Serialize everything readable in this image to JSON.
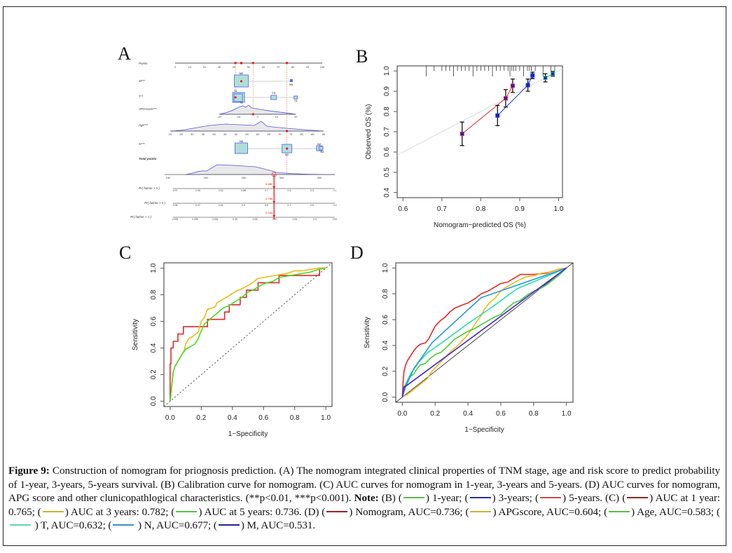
{
  "panels": {
    "A": {
      "letter": "A"
    },
    "B": {
      "letter": "B"
    },
    "C": {
      "letter": "C"
    },
    "D": {
      "letter": "D"
    }
  },
  "chart_data": [
    {
      "id": "A",
      "type": "nomogram",
      "rows": [
        {
          "label": "Points",
          "ticks": [
            "0",
            "10",
            "20",
            "30",
            "40",
            "50",
            "60",
            "70",
            "80",
            "90",
            "100"
          ]
        },
        {
          "label": "M***",
          "levels": [
            {
              "name": "M0",
              "points": 45
            },
            {
              "name": "M1",
              "points": 79
            }
          ]
        },
        {
          "label": "T**",
          "levels": [
            {
              "name": "T2",
              "points": 41
            },
            {
              "name": "T3",
              "points": 67
            },
            {
              "name": "T1",
              "points": 45
            },
            {
              "name": "T4",
              "points": 82
            }
          ]
        },
        {
          "label": "APGscore***",
          "ticks": [
            "-20",
            "-10",
            "0",
            "10",
            "20"
          ]
        },
        {
          "label": "Age***",
          "ticks": [
            "20",
            "25",
            "30",
            "35",
            "40",
            "45",
            "50",
            "55",
            "60",
            "65",
            "70",
            "75",
            "80",
            "85",
            "90"
          ]
        },
        {
          "label": "N***",
          "levels": [
            {
              "name": "N0",
              "points": 45
            },
            {
              "name": "N1",
              "points": 76
            },
            {
              "name": "N2",
              "points": 98
            },
            {
              "name": "N3",
              "points": 99
            }
          ]
        },
        {
          "label": "Total points",
          "ticks": [
            "150",
            "200",
            "250",
            "300",
            "350"
          ]
        },
        {
          "label": "Pr( futime > 5 )",
          "ticks": [
            "0.97",
            "0.95",
            "0.92",
            "0.88",
            "0.7",
            "0.5",
            "0.3",
            "0.1"
          ],
          "value": "0.682"
        },
        {
          "label": "Pr( futime > 3 )",
          "ticks": [
            "0.98",
            "0.97",
            "0.94",
            "0.9",
            "0.8",
            "0.7",
            "0.5",
            "0.3"
          ],
          "value": "0.789"
        },
        {
          "label": "Pr( futime > 1 )",
          "ticks": [
            "0.998",
            "0.996",
            "0.994",
            "0.99",
            "0.98",
            "0.97",
            "0.94",
            "0.9",
            "0.82"
          ],
          "value": "0.943"
        }
      ],
      "selected_total_points": 290
    },
    {
      "id": "B",
      "type": "scatter",
      "xlabel": "Nomogram−predicted OS (%)",
      "ylabel": "Observed OS (%)",
      "xlim": [
        0.585,
        1.01
      ],
      "ylim": [
        0.375,
        1.025
      ],
      "xticks": [
        0.6,
        0.7,
        0.8,
        0.9,
        1.0
      ],
      "yticks": [
        0.4,
        0.5,
        0.6,
        0.7,
        0.8,
        0.9,
        1.0
      ],
      "xtick_labels": [
        "0.6",
        "0.7",
        "0.8",
        "0.9",
        "1.0"
      ],
      "ytick_labels": [
        "0.4",
        "0.5",
        "0.6",
        "0.7",
        "0.8",
        "0.9",
        "1.0"
      ],
      "series": [
        {
          "name": "5-years",
          "color": "#e8262a",
          "x": [
            0.752,
            0.864,
            0.882
          ],
          "y": [
            0.69,
            0.865,
            0.927
          ],
          "err": [
            0.058,
            0.043,
            0.033
          ]
        },
        {
          "name": "3-years",
          "color": "#2233dd",
          "x": [
            0.843,
            0.921,
            0.933
          ],
          "y": [
            0.78,
            0.93,
            0.978
          ],
          "err": [
            0.05,
            0.03,
            0.016
          ]
        },
        {
          "name": "1-year",
          "color": "#33cc55",
          "x": [
            0.966,
            0.985
          ],
          "y": [
            0.966,
            0.986
          ],
          "err": [
            0.02,
            0.012
          ]
        }
      ],
      "rug": [
        0.66,
        0.68,
        0.7,
        0.71,
        0.72,
        0.73,
        0.74,
        0.75,
        0.76,
        0.77,
        0.78,
        0.79,
        0.8,
        0.81,
        0.82,
        0.83,
        0.84,
        0.85,
        0.86,
        0.87,
        0.875,
        0.88,
        0.885,
        0.89,
        0.9,
        0.91,
        0.92,
        0.925,
        0.93,
        0.94,
        0.96,
        0.98,
        0.99
      ],
      "reference_line": "diagonal"
    },
    {
      "id": "C",
      "type": "line",
      "xlabel": "1−Specificity",
      "ylabel": "Sensitivity",
      "xlim": [
        -0.04,
        1.04
      ],
      "ylim": [
        -0.04,
        1.04
      ],
      "xticks": [
        0,
        0.2,
        0.4,
        0.6,
        0.8,
        1.0
      ],
      "yticks": [
        0,
        0.2,
        0.4,
        0.6,
        0.8,
        1.0
      ],
      "xtick_labels": [
        "0.0",
        "0.2",
        "0.4",
        "0.6",
        "0.8",
        "1.0"
      ],
      "ytick_labels": [
        "0.0",
        "0.2",
        "0.4",
        "0.6",
        "0.8",
        "1.0"
      ],
      "series": [
        {
          "name": "AUC at 1 year: 0.765",
          "color": "#e8262a",
          "step": true,
          "x": [
            0,
            0,
            0.005,
            0.005,
            0.02,
            0.02,
            0.05,
            0.05,
            0.085,
            0.085,
            0.24,
            0.24,
            0.35,
            0.35,
            0.38,
            0.38,
            0.45,
            0.45,
            0.49,
            0.49,
            0.565,
            0.565,
            0.7,
            0.7,
            0.96,
            0.96,
            1.0
          ],
          "y": [
            0,
            0.28,
            0.28,
            0.4,
            0.4,
            0.45,
            0.45,
            0.505,
            0.505,
            0.56,
            0.56,
            0.615,
            0.615,
            0.67,
            0.67,
            0.725,
            0.725,
            0.78,
            0.78,
            0.835,
            0.835,
            0.89,
            0.89,
            0.945,
            0.945,
            1.0,
            1.0
          ]
        },
        {
          "name": "AUC at 3 years: 0.782",
          "color": "#eebb11",
          "x": [
            0,
            0.01,
            0.02,
            0.03,
            0.05,
            0.07,
            0.09,
            0.1,
            0.12,
            0.15,
            0.18,
            0.2,
            0.22,
            0.24,
            0.27,
            0.29,
            0.3,
            0.33,
            0.36,
            0.4,
            0.43,
            0.47,
            0.5,
            0.53,
            0.56,
            0.6,
            0.65,
            0.7,
            0.75,
            0.8,
            0.85,
            0.9,
            0.95,
            1.0
          ],
          "y": [
            0,
            0.1,
            0.22,
            0.26,
            0.3,
            0.34,
            0.38,
            0.43,
            0.47,
            0.49,
            0.52,
            0.6,
            0.63,
            0.69,
            0.7,
            0.71,
            0.74,
            0.76,
            0.78,
            0.81,
            0.83,
            0.85,
            0.87,
            0.89,
            0.92,
            0.93,
            0.94,
            0.95,
            0.96,
            0.98,
            0.98,
            0.99,
            1.0,
            1.0
          ]
        },
        {
          "name": "AUC at 5 years: 0.736",
          "color": "#44dd22",
          "x": [
            0,
            0.01,
            0.02,
            0.03,
            0.05,
            0.07,
            0.08,
            0.1,
            0.13,
            0.16,
            0.18,
            0.2,
            0.22,
            0.25,
            0.28,
            0.31,
            0.34,
            0.38,
            0.42,
            0.46,
            0.5,
            0.54,
            0.58,
            0.62,
            0.66,
            0.7,
            0.75,
            0.8,
            0.85,
            0.9,
            0.95,
            1.0
          ],
          "y": [
            0,
            0.12,
            0.22,
            0.26,
            0.3,
            0.34,
            0.36,
            0.39,
            0.41,
            0.43,
            0.47,
            0.53,
            0.58,
            0.61,
            0.64,
            0.67,
            0.7,
            0.72,
            0.75,
            0.78,
            0.82,
            0.84,
            0.87,
            0.89,
            0.9,
            0.93,
            0.94,
            0.95,
            0.96,
            0.97,
            0.99,
            1.0
          ]
        }
      ],
      "reference_line": "diagonal-dotted"
    },
    {
      "id": "D",
      "type": "line",
      "xlabel": "1−Specificity",
      "ylabel": "Sensitivity",
      "xlim": [
        -0.04,
        1.04
      ],
      "ylim": [
        -0.04,
        1.04
      ],
      "xticks": [
        0,
        0.2,
        0.4,
        0.6,
        0.8,
        1.0
      ],
      "yticks": [
        0,
        0.2,
        0.4,
        0.6,
        0.8,
        1.0
      ],
      "xtick_labels": [
        "0.0",
        "0.2",
        "0.4",
        "0.6",
        "0.8",
        "1.0"
      ],
      "ytick_labels": [
        "0.0",
        "0.2",
        "0.4",
        "0.6",
        "0.8",
        "1.0"
      ],
      "series": [
        {
          "name": "Nomogram, AUC=0.736",
          "color": "#e8262a",
          "x": [
            0,
            0.005,
            0.01,
            0.02,
            0.03,
            0.05,
            0.07,
            0.09,
            0.11,
            0.14,
            0.16,
            0.18,
            0.2,
            0.23,
            0.26,
            0.29,
            0.32,
            0.36,
            0.4,
            0.44,
            0.48,
            0.52,
            0.56,
            0.6,
            0.64,
            0.68,
            0.72,
            0.8,
            0.88,
            0.95,
            1.0
          ],
          "y": [
            0,
            0.12,
            0.2,
            0.25,
            0.28,
            0.32,
            0.36,
            0.39,
            0.41,
            0.42,
            0.45,
            0.5,
            0.55,
            0.59,
            0.62,
            0.66,
            0.69,
            0.71,
            0.73,
            0.76,
            0.8,
            0.82,
            0.85,
            0.88,
            0.89,
            0.92,
            0.95,
            0.95,
            0.96,
            0.99,
            1.0
          ]
        },
        {
          "name": "APGscore, AUC=0.604",
          "color": "#eebb11",
          "x": [
            0,
            0.03,
            0.06,
            0.09,
            0.12,
            0.15,
            0.18,
            0.21,
            0.24,
            0.27,
            0.3,
            0.33,
            0.36,
            0.39,
            0.42,
            0.45,
            0.48,
            0.5,
            0.53,
            0.56,
            0.6,
            0.63,
            0.66,
            0.7,
            0.75,
            0.8,
            0.85,
            0.9,
            0.95,
            1.0
          ],
          "y": [
            0,
            0.02,
            0.05,
            0.08,
            0.11,
            0.14,
            0.2,
            0.24,
            0.28,
            0.32,
            0.36,
            0.39,
            0.43,
            0.47,
            0.52,
            0.58,
            0.63,
            0.68,
            0.73,
            0.76,
            0.82,
            0.85,
            0.87,
            0.9,
            0.93,
            0.94,
            0.96,
            0.97,
            0.99,
            1.0
          ]
        },
        {
          "name": "Age, AUC=0.583",
          "color": "#44cc33",
          "x": [
            0,
            0.01,
            0.03,
            0.05,
            0.07,
            0.09,
            0.11,
            0.14,
            0.17,
            0.2,
            0.24,
            0.28,
            0.32,
            0.36,
            0.4,
            0.44,
            0.48,
            0.52,
            0.56,
            0.6,
            0.64,
            0.68,
            0.72,
            0.76,
            0.8,
            0.84,
            0.88,
            0.92,
            0.96,
            1.0
          ],
          "y": [
            0,
            0.08,
            0.12,
            0.16,
            0.18,
            0.22,
            0.25,
            0.26,
            0.3,
            0.33,
            0.35,
            0.4,
            0.45,
            0.48,
            0.51,
            0.53,
            0.56,
            0.59,
            0.62,
            0.64,
            0.69,
            0.73,
            0.75,
            0.79,
            0.82,
            0.84,
            0.87,
            0.91,
            0.95,
            1.0
          ]
        },
        {
          "name": "T, AUC=0.632",
          "color": "#22ddaa",
          "x": [
            0,
            0.02,
            0.05,
            0.1,
            0.15,
            0.25,
            0.4,
            0.55,
            0.7,
            0.85,
            1.0
          ],
          "y": [
            0,
            0.1,
            0.18,
            0.27,
            0.34,
            0.43,
            0.57,
            0.7,
            0.84,
            0.92,
            1.0
          ]
        },
        {
          "name": "N, AUC=0.677",
          "color": "#2299dd",
          "x": [
            0,
            0.02,
            0.07,
            0.18,
            0.48,
            1.0
          ],
          "y": [
            0,
            0.08,
            0.22,
            0.42,
            0.77,
            1.0
          ]
        },
        {
          "name": "M, AUC=0.531",
          "color": "#4422dd",
          "x": [
            0,
            0.01,
            1.0
          ],
          "y": [
            0,
            0.075,
            1.0
          ]
        }
      ],
      "reference_line": "diagonal-solid"
    }
  ],
  "caption": {
    "figure_label": "Figure 9:",
    "text_1": " Construction of nomogram for priognosis prediction. (A) The nomogram integrated clinical properties of TNM stage, age and risk score to predict probability of 1-year, 3-years, 5-years survival. (B) Calibration curve for nomogram. (C) AUC curves for nomogram in 1-year, 3-years and 5-years. (D) AUC curves for nomogram, APG score and other clunicopathlogical characteristics. (**p<0.01, ***p<0.001). ",
    "note_label": "Note:",
    "b_prefix": " (B) (",
    "legend_items": [
      {
        "color": "#5bbf4a",
        "text": ") 1-year; ("
      },
      {
        "color": "#2b2fa8",
        "text": ") 3-years; ("
      },
      {
        "color": "#c44d4d",
        "text": ") 5-years. (C) ("
      },
      {
        "color": "#9b2226",
        "text": ") AUC at 1 year: 0.765; ("
      },
      {
        "color": "#d4b12a",
        "text": ") AUC at 3 years: 0.782; ("
      },
      {
        "color": "#5bbf4a",
        "text": ") AUC at 5 years: 0.736. (D) ("
      },
      {
        "color": "#9b2226",
        "text": ") Nomogram, AUC=0.736; ("
      },
      {
        "color": "#d4b12a",
        "text": ") APGscore, AUC=0.604; ("
      },
      {
        "color": "#5bbf4a",
        "text": ") Age, AUC=0.583; ("
      },
      {
        "color": "#5fd4b0",
        "text": " ) T, AUC=0.632; ("
      },
      {
        "color": "#3a8fc9",
        "text": " ) N, AUC=0.677; ("
      },
      {
        "color": "#22229a",
        "text": ") M, AUC=0.531."
      }
    ]
  }
}
